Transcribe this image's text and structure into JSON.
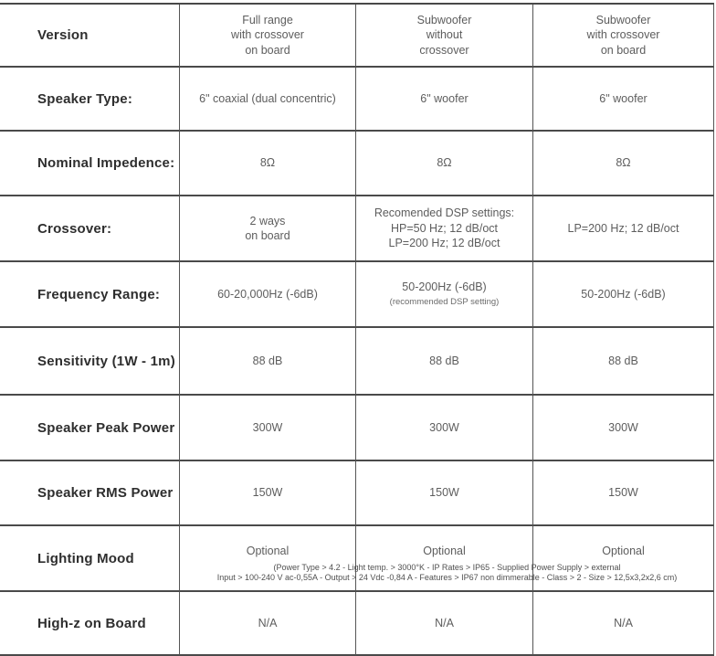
{
  "table": {
    "rows": [
      {
        "label": "Version",
        "values": [
          "Full range\nwith crossover\non board",
          "Subwoofer\nwithout\ncrossover",
          "Subwoofer\nwith crossover\non board"
        ]
      },
      {
        "label": "Speaker Type:",
        "values": [
          "6\" coaxial (dual concentric)",
          "6\" woofer",
          "6\" woofer"
        ]
      },
      {
        "label": "Nominal Impedence:",
        "values": [
          "8Ω",
          "8Ω",
          "8Ω"
        ]
      },
      {
        "label": "Crossover:",
        "values": [
          "2 ways\non board",
          "Recomended DSP settings:\nHP=50 Hz; 12 dB/oct\nLP=200 Hz; 12 dB/oct",
          "LP=200 Hz; 12 dB/oct"
        ]
      },
      {
        "label": "Frequency Range:",
        "values": [
          "60-20,000Hz (-6dB)",
          "50-200Hz (-6dB)",
          "50-200Hz (-6dB)"
        ]
      },
      {
        "label": "Sensitivity (1W - 1m)",
        "values": [
          "88 dB",
          "88 dB",
          "88 dB"
        ]
      },
      {
        "label": "Speaker Peak Power",
        "values": [
          "300W",
          "300W",
          "300W"
        ]
      },
      {
        "label": "Speaker RMS Power",
        "values": [
          "150W",
          "150W",
          "150W"
        ]
      },
      {
        "label": "Lighting Mood",
        "values": [
          "Optional",
          "Optional",
          "Optional"
        ]
      },
      {
        "label": "High-z on Board",
        "values": [
          "N/A",
          "N/A",
          "N/A"
        ]
      }
    ],
    "freq_note": "(recommended DSP setting)",
    "lighting_note_line1": "(Power Type > 4.2 - Light temp. > 3000°K - IP Rates > IP65 - Supplied Power Supply > external",
    "lighting_note_line2": "Input > 100-240 V ac-0,55A - Output > 24 Vdc -0,84 A - Features > IP67 non dimmerable - Class > 2 - Size > 12,5x3,2x2,6 cm)"
  }
}
